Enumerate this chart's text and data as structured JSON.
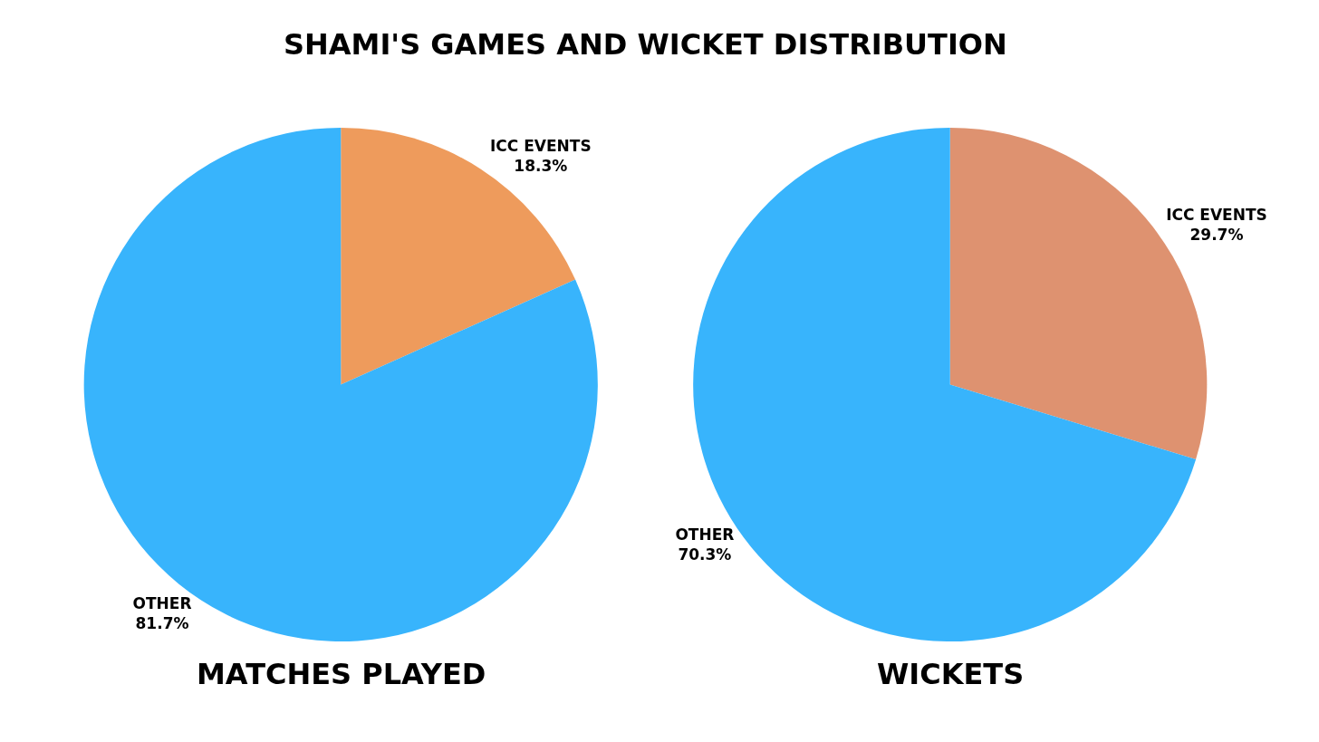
{
  "chart_data": [
    {
      "type": "pie",
      "title": "MATCHES PLAYED",
      "annotations": [
        "SHAMI'S GAMES AND WICKET DISTRIBUTION"
      ],
      "categories": [
        "ICC EVENTS",
        "OTHER"
      ],
      "values": [
        18.3,
        81.7
      ],
      "value_labels": [
        "18.3%",
        "81.7%"
      ],
      "colors": [
        "#ee9b5c",
        "#38b4fc"
      ],
      "legend": false
    },
    {
      "type": "pie",
      "title": "WICKETS",
      "categories": [
        "ICC EVENTS",
        "OTHER"
      ],
      "values": [
        29.7,
        70.3
      ],
      "value_labels": [
        "29.7%",
        "70.3%"
      ],
      "colors": [
        "#de9270",
        "#38b4fc"
      ],
      "legend": false
    }
  ]
}
